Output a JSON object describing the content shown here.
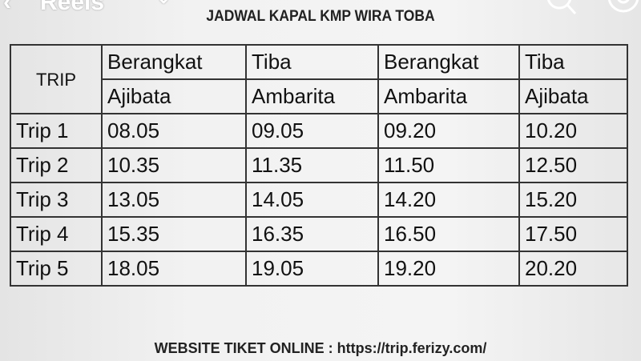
{
  "overlay": {
    "back_icon": "chevron-left-icon",
    "label": "Reels",
    "dropdown_icon": "chevron-down-icon",
    "search_icon": "search-icon",
    "camera_icon": "camera-icon"
  },
  "title": "JADWAL KAPAL KMP WIRA TOBA",
  "table": {
    "header_top": [
      "TRIP",
      "Berangkat",
      "Tiba",
      "Berangkat",
      "Tiba"
    ],
    "header_bottom": [
      "Ajibata",
      "Ambarita",
      "Ambarita",
      "Ajibata"
    ],
    "rows": [
      [
        "Trip 1",
        "08.05",
        "09.05",
        "09.20",
        "10.20"
      ],
      [
        "Trip 2",
        "10.35",
        "11.35",
        "11.50",
        "12.50"
      ],
      [
        "Trip 3",
        "13.05",
        "14.05",
        "14.20",
        "15.20"
      ],
      [
        "Trip 4",
        "15.35",
        "16.35",
        "16.50",
        "17.50"
      ],
      [
        "Trip 5",
        "18.05",
        "19.05",
        "19.20",
        "20.20"
      ]
    ]
  },
  "footer": "WEBSITE TIKET ONLINE : https://trip.ferizy.com/"
}
